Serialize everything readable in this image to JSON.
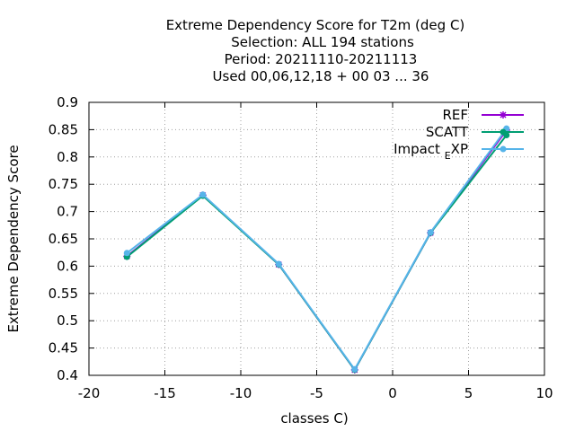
{
  "chart_data": {
    "type": "line",
    "title_lines": [
      "Extreme Dependency Score  for T2m (deg C)",
      "Selection: ALL    194 stations",
      "Period: 20211110-20211113",
      "Used  00,06,12,18 + 00 03 ... 36"
    ],
    "xlabel": "classes C)",
    "ylabel": "Extreme Dependency Score",
    "xlim": [
      -20,
      10
    ],
    "ylim": [
      0.4,
      0.9
    ],
    "xticks": [
      -20,
      -15,
      -10,
      -5,
      0,
      5,
      10
    ],
    "yticks": [
      0.4,
      0.45,
      0.5,
      0.55,
      0.6,
      0.65,
      0.7,
      0.75,
      0.8,
      0.85,
      0.9
    ],
    "xtick_labels": [
      "-20",
      "-15",
      "-10",
      "-5",
      "0",
      "5",
      "10"
    ],
    "ytick_labels": [
      "0.4",
      "0.45",
      "0.5",
      "0.55",
      "0.6",
      "0.65",
      "0.7",
      "0.75",
      "0.8",
      "0.85",
      "0.9"
    ],
    "grid": true,
    "legend_position": "top-right",
    "x": [
      -17.5,
      -12.5,
      -7.5,
      -2.5,
      2.5,
      7.5
    ],
    "series": [
      {
        "name": "REF",
        "color": "#9400d3",
        "marker": "star",
        "values": [
          0.618,
          0.73,
          0.603,
          0.41,
          0.661,
          0.849
        ]
      },
      {
        "name": "SCATT",
        "color": "#009e73",
        "marker": "circle",
        "values": [
          0.617,
          0.729,
          0.603,
          0.41,
          0.661,
          0.84
        ]
      },
      {
        "name": "Impact",
        "name_subscript": "E",
        "name_suffix": "XP",
        "color": "#56b4e9",
        "marker": "circle",
        "values": [
          0.624,
          0.731,
          0.604,
          0.411,
          0.662,
          0.852
        ]
      }
    ]
  }
}
